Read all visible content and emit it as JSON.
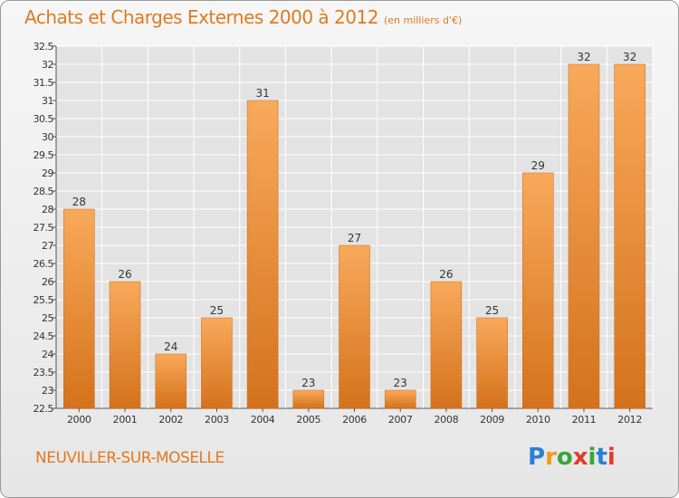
{
  "header": {
    "title": "Achats et Charges Externes 2000 à 2012",
    "subtitle": "(en milliers d'€)"
  },
  "footer": {
    "place": "NEUVILLER-SUR-MOSELLE",
    "brand_letters": [
      "P",
      "r",
      "o",
      "x",
      "i",
      "t",
      "i"
    ],
    "brand_colors": [
      "#2a7fd4",
      "#f29a1c",
      "#3aa63a",
      "#e23b2a",
      "#3aa63a",
      "#2a7fd4",
      "#e23b2a"
    ]
  },
  "chart_data": {
    "type": "bar",
    "title": "Achats et Charges Externes 2000 à 2012",
    "subtitle": "(en milliers d'€)",
    "categories": [
      "2000",
      "2001",
      "2002",
      "2003",
      "2004",
      "2005",
      "2006",
      "2007",
      "2008",
      "2009",
      "2010",
      "2011",
      "2012"
    ],
    "values": [
      28,
      26,
      24,
      25,
      31,
      23,
      27,
      23,
      26,
      25,
      29,
      32,
      32
    ],
    "ylim": [
      22.5,
      32.5
    ],
    "yticks": [
      "22.5",
      "23",
      "23.5",
      "24",
      "24.5",
      "25",
      "25.5",
      "26",
      "26.5",
      "27",
      "27.5",
      "28",
      "28.5",
      "29",
      "29.5",
      "30",
      "30.5",
      "31",
      "31.5",
      "32",
      "32.5"
    ],
    "grid": true,
    "colors": {
      "bar_light": "#f8a95a",
      "bar_dark": "#d4721c",
      "grid": "#ffffff",
      "axis": "#555555"
    }
  }
}
